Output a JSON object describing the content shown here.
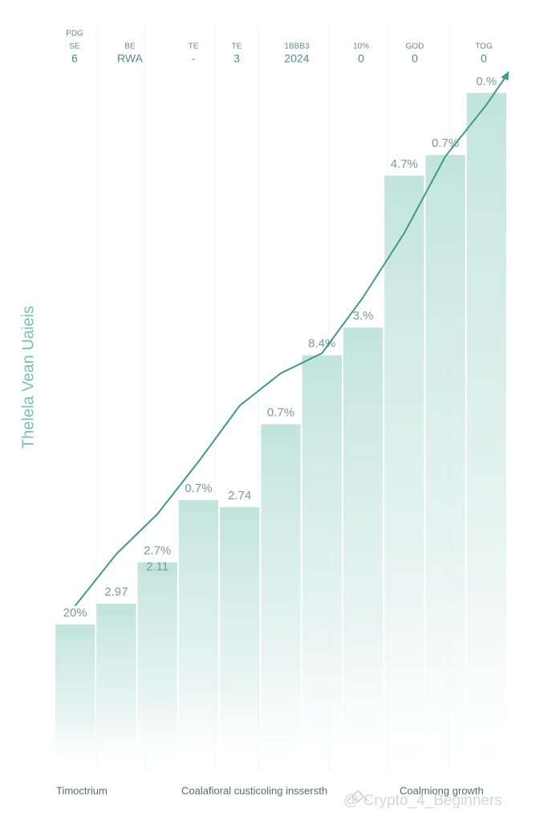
{
  "header": {
    "columns": [
      [
        "PDG",
        "SE",
        "6"
      ],
      [
        "BE",
        "RWA"
      ],
      [
        "TE",
        "-"
      ],
      [
        "TE",
        "3"
      ],
      [
        "1BBB3",
        "2024"
      ],
      [
        "10%",
        "0"
      ],
      [
        "GOD",
        "0"
      ],
      [
        "TOG",
        "0"
      ]
    ]
  },
  "chart_data": {
    "type": "bar",
    "y_label": "Thelela Vean Uaieis",
    "categories": [
      null,
      null,
      null,
      null,
      null,
      null,
      null,
      null,
      null,
      null,
      null
    ],
    "values": [
      20,
      23,
      29,
      38,
      37,
      49,
      59,
      63,
      85,
      88,
      97
    ],
    "bar_labels": [
      [
        "20%"
      ],
      [
        "2.97"
      ],
      [
        "2.7%",
        "2.11"
      ],
      [
        "0.7%"
      ],
      [
        "2.74"
      ],
      [
        "0.7%"
      ],
      [
        "8.4%"
      ],
      [
        "3.%"
      ],
      [
        "4.7%"
      ],
      [
        "0.7%"
      ],
      [
        "0.%"
      ]
    ],
    "line_values": [
      22.7,
      30.2,
      36.0,
      43.6,
      51.7,
      56.4,
      59.3,
      67.4,
      76.7,
      87.8,
      95.3
    ],
    "color": "#bfe3da",
    "line_color": "#3f9a8a",
    "ylim": [
      0,
      100
    ]
  },
  "footer": {
    "notes": [
      "Timoctrium",
      "Coalafioral custicoling inssersth",
      "Coalmiong growth"
    ],
    "watermark": "@ Crypto_4_Beginners"
  }
}
